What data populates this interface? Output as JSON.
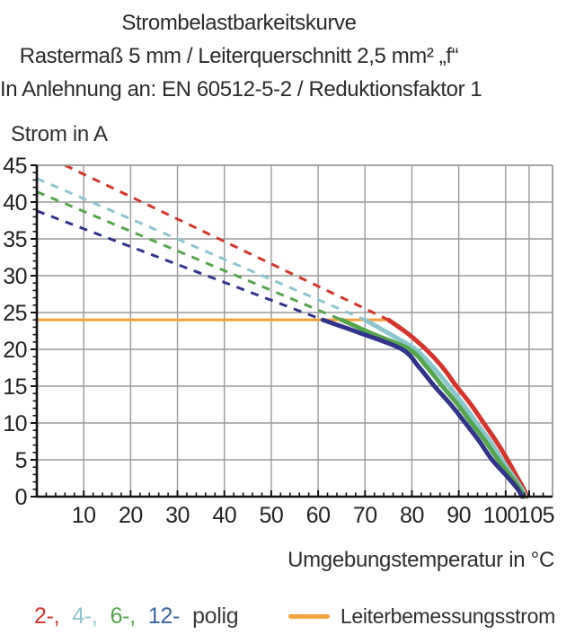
{
  "title": {
    "line1": "Strombelastbarkeitskurve",
    "line2": "Rastermaß 5 mm / Leiterquerschnitt 2,5 mm² „f“",
    "line3": "In Anlehnung an: EN 60512-5-2 / Reduktionsfaktor 1"
  },
  "chart_data": {
    "type": "line",
    "title": "Strombelastbarkeitskurve",
    "xlabel": "Umgebungstemperatur in °C",
    "ylabel": "Strom in A",
    "xlim": [
      0,
      110
    ],
    "ylim": [
      0,
      45
    ],
    "x_major_ticks": [
      10,
      20,
      30,
      40,
      50,
      60,
      70,
      80,
      90,
      100,
      105
    ],
    "y_major_ticks": [
      0,
      5,
      10,
      15,
      20,
      25,
      30,
      35,
      40,
      45
    ],
    "x_minor_step": 2,
    "y_minor_step": 1,
    "grid": true,
    "grid_color": "#9a9a9a",
    "axis_color": "#111111",
    "legend_position": "bottom",
    "series": [
      {
        "name": "2-polig",
        "color": "#d63429",
        "dashed_points": [
          [
            6,
            45
          ],
          [
            75,
            24
          ]
        ],
        "solid_points": [
          [
            75,
            24
          ],
          [
            79,
            22.2
          ],
          [
            83,
            20
          ],
          [
            86.5,
            17.6
          ],
          [
            89.5,
            15
          ],
          [
            92.6,
            12.5
          ],
          [
            95.3,
            10
          ],
          [
            98,
            7.5
          ],
          [
            100.4,
            5
          ],
          [
            102.5,
            2.6
          ],
          [
            103.9,
            1
          ],
          [
            104.5,
            0
          ]
        ]
      },
      {
        "name": "4-polig",
        "color": "#8bc6ce",
        "dashed_points": [
          [
            0,
            43.2
          ],
          [
            70,
            24
          ]
        ],
        "solid_points": [
          [
            70,
            24
          ],
          [
            75.5,
            22
          ],
          [
            80.8,
            20
          ],
          [
            84.5,
            17.6
          ],
          [
            87.9,
            15
          ],
          [
            91,
            12.5
          ],
          [
            93.8,
            10
          ],
          [
            96.7,
            7.5
          ],
          [
            99.2,
            5
          ],
          [
            101.8,
            2.6
          ],
          [
            103.5,
            1
          ],
          [
            104.2,
            0
          ]
        ]
      },
      {
        "name": "6-polig",
        "color": "#55a54b",
        "dashed_points": [
          [
            0,
            41.4
          ],
          [
            65,
            24
          ]
        ],
        "solid_points": [
          [
            65,
            24
          ],
          [
            72,
            22
          ],
          [
            79.5,
            20
          ],
          [
            83.2,
            17.6
          ],
          [
            86.5,
            15
          ],
          [
            89.8,
            12.5
          ],
          [
            92.7,
            10
          ],
          [
            95.7,
            7.5
          ],
          [
            98.4,
            5
          ],
          [
            101.3,
            2.6
          ],
          [
            103.1,
            1
          ],
          [
            103.9,
            0
          ]
        ]
      },
      {
        "name": "12-polig",
        "color": "#31338d",
        "dashed_points": [
          [
            0,
            38.8
          ],
          [
            61,
            24
          ]
        ],
        "solid_points": [
          [
            61,
            24
          ],
          [
            69,
            22.2
          ],
          [
            77.9,
            20
          ],
          [
            81.5,
            17.6
          ],
          [
            84.8,
            15
          ],
          [
            88.3,
            12.5
          ],
          [
            91.4,
            10
          ],
          [
            94.4,
            7.5
          ],
          [
            97.1,
            5
          ],
          [
            100.5,
            2.6
          ],
          [
            102.6,
            1
          ],
          [
            103.5,
            0
          ]
        ]
      }
    ],
    "reference_line": {
      "name": "Leiterbemessungsstrom",
      "color": "#f4a33c",
      "value": 24,
      "x_start": 0,
      "x_end": 75
    }
  },
  "legend": {
    "poles": [
      {
        "label": "2-,",
        "color": "#d63429"
      },
      {
        "label": "4-,",
        "color": "#8bc6ce"
      },
      {
        "label": "6-,",
        "color": "#55a54b"
      },
      {
        "label": "12-",
        "color": "#3a67a0"
      }
    ],
    "poles_suffix": "polig",
    "reference": {
      "label": "Leiterbemessungsstrom",
      "color": "#f4a33c"
    }
  }
}
